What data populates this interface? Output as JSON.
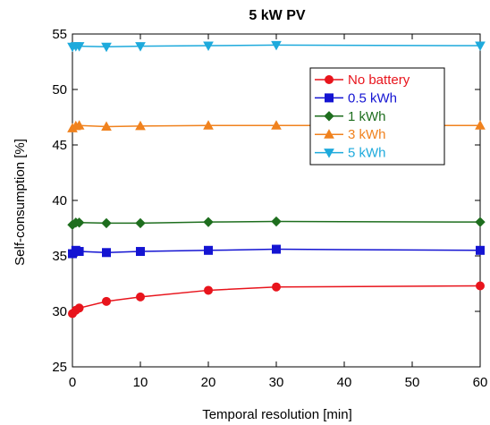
{
  "chart_data": {
    "type": "line",
    "title": "5 kW PV",
    "xlabel": "Temporal resolution [min]",
    "ylabel": "Self-consumption [%]",
    "xlim": [
      0,
      60
    ],
    "ylim": [
      25,
      55
    ],
    "xticks": [
      0,
      10,
      20,
      30,
      40,
      50,
      60
    ],
    "yticks": [
      25,
      30,
      35,
      40,
      45,
      50,
      55
    ],
    "grid": false,
    "legend_position": "top-right",
    "x": [
      0,
      0.5,
      1,
      5,
      10,
      20,
      30,
      60
    ],
    "series": [
      {
        "name": "No battery",
        "color": "#e8141c",
        "marker": "circle",
        "values": [
          29.8,
          30.1,
          30.3,
          30.9,
          31.3,
          31.9,
          32.2,
          32.3
        ]
      },
      {
        "name": "0.5 kWh",
        "color": "#1414d2",
        "marker": "square",
        "values": [
          35.2,
          35.5,
          35.4,
          35.3,
          35.4,
          35.5,
          35.6,
          35.5
        ]
      },
      {
        "name": "1 kWh",
        "color": "#1e6e1e",
        "marker": "diamond",
        "values": [
          37.8,
          38.0,
          38.0,
          37.95,
          37.95,
          38.05,
          38.1,
          38.05
        ]
      },
      {
        "name": "3 kWh",
        "color": "#f0821e",
        "marker": "triangle-up",
        "values": [
          46.5,
          46.7,
          46.75,
          46.65,
          46.7,
          46.75,
          46.75,
          46.75
        ]
      },
      {
        "name": "5 kWh",
        "color": "#1eaadc",
        "marker": "triangle-down",
        "values": [
          53.85,
          53.9,
          53.9,
          53.85,
          53.9,
          53.95,
          54.0,
          53.95
        ]
      }
    ]
  }
}
